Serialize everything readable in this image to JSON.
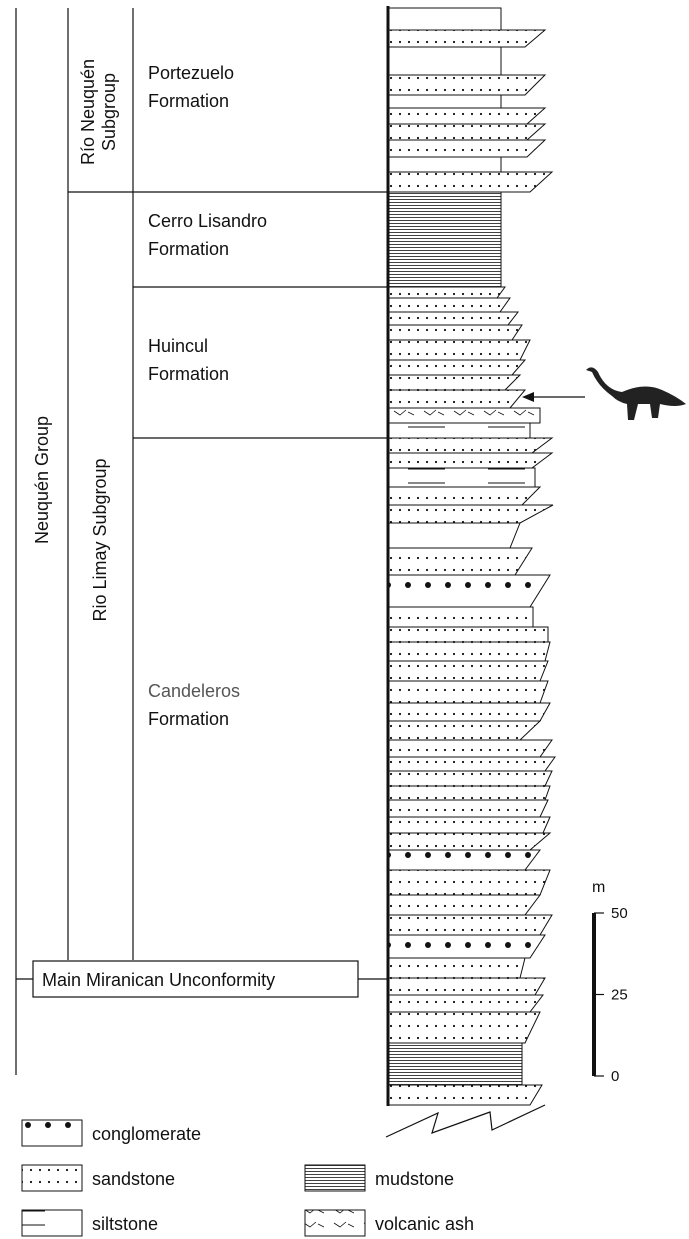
{
  "groups": [
    {
      "lines": [
        "Neuquén Group"
      ]
    }
  ],
  "subgroups": [
    {
      "lines": [
        "Río Neuquén",
        "Subgroup"
      ]
    },
    {
      "lines": [
        "Rio Limay Subgroup"
      ]
    }
  ],
  "formations": [
    {
      "lines": [
        "Portezuelo",
        "Formation"
      ]
    },
    {
      "lines": [
        "Cerro Lisandro",
        "Formation"
      ]
    },
    {
      "lines": [
        "Huincul",
        "Formation"
      ]
    },
    {
      "lines": [
        "Candeleros",
        "Formation"
      ]
    }
  ],
  "unconformity": "Main Miranican Unconformity",
  "scale": {
    "unit": "m",
    "ticks": [
      0,
      25,
      50
    ]
  },
  "legend": [
    {
      "label": "conglomerate"
    },
    {
      "label": "sandstone"
    },
    {
      "label": "mudstone"
    },
    {
      "label": "siltstone"
    },
    {
      "label": "volcanic ash"
    }
  ]
}
